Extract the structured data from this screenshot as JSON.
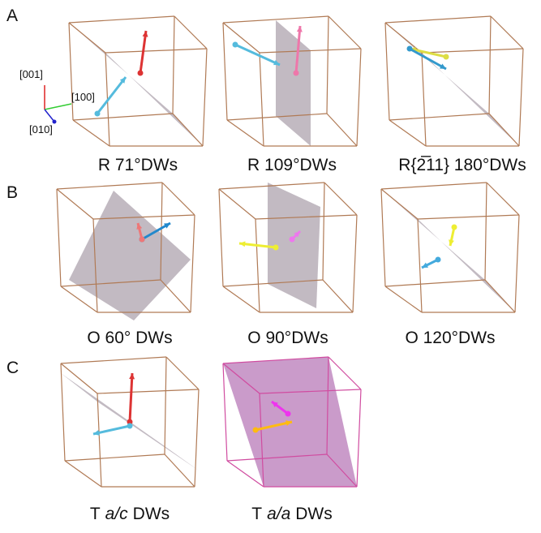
{
  "panels": [
    {
      "label": "A",
      "items": [
        {
          "caption": "R 71°DWs"
        },
        {
          "caption": "R 109°DWs"
        },
        {
          "caption": "R{2̅11} 180°DWs"
        }
      ]
    },
    {
      "label": "B",
      "items": [
        {
          "caption": "O 60° DWs"
        },
        {
          "caption": "O 90°DWs"
        },
        {
          "caption": "O 120°DWs"
        }
      ]
    },
    {
      "label": "C",
      "items": [
        {
          "caption": [
            "T",
            "a/c",
            "DWs"
          ]
        },
        {
          "caption": [
            "T",
            "a/a",
            "DWs"
          ]
        }
      ]
    }
  ],
  "axes": [
    "[001]",
    "[100]",
    "[010]"
  ]
}
